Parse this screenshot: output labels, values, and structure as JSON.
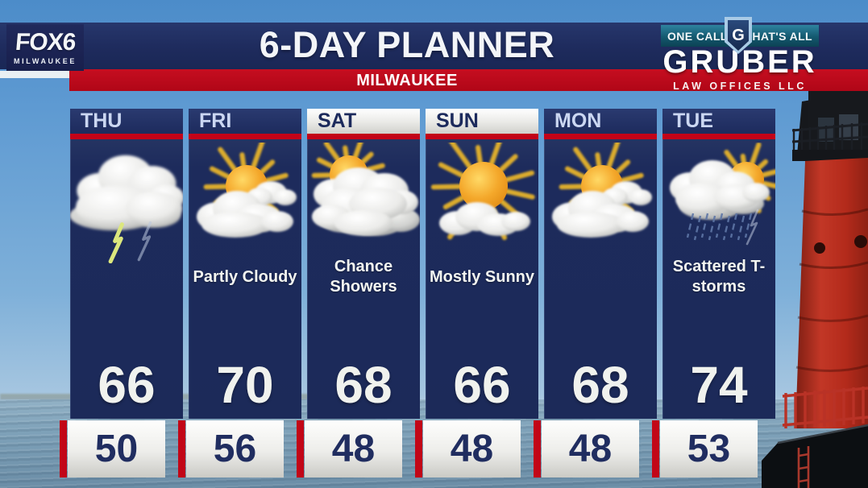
{
  "chart_data": {
    "type": "table",
    "title": "6-DAY PLANNER",
    "location": "MILWAUKEE",
    "days": [
      "THU",
      "FRI",
      "SAT",
      "SUN",
      "MON",
      "TUE"
    ],
    "conditions": [
      "",
      "Partly Cloudy",
      "Chance Showers",
      "Mostly Sunny",
      "",
      "Scattered T-storms"
    ],
    "highs": [
      66,
      70,
      68,
      66,
      68,
      74
    ],
    "lows": [
      50,
      56,
      48,
      48,
      48,
      53
    ]
  },
  "station": {
    "logo_text": "FOX6",
    "logo_subtext": "MILWAUKEE"
  },
  "header": {
    "title": "6-DAY PLANNER",
    "location": "MILWAUKEE"
  },
  "sponsor": {
    "tag_left": "ONE CALL",
    "tag_right": "THAT'S ALL",
    "monogram": "G",
    "name": "GRUBER",
    "subtext": "LAW OFFICES LLC"
  },
  "forecast": {
    "columns": [
      {
        "day": "THU",
        "icon": "thunderstorm",
        "condition": "",
        "high": "66",
        "low": "50"
      },
      {
        "day": "FRI",
        "icon": "partly-cloudy",
        "condition": "Partly Cloudy",
        "high": "70",
        "low": "56"
      },
      {
        "day": "SAT",
        "icon": "chance-showers",
        "condition": "Chance Showers",
        "high": "68",
        "low": "48"
      },
      {
        "day": "SUN",
        "icon": "mostly-sunny",
        "condition": "Mostly Sunny",
        "high": "66",
        "low": "48"
      },
      {
        "day": "MON",
        "icon": "partly-cloudy",
        "condition": "",
        "high": "68",
        "low": "48"
      },
      {
        "day": "TUE",
        "icon": "scattered-tstorms",
        "condition": "Scattered T-storms",
        "high": "74",
        "low": "53"
      }
    ]
  },
  "colors": {
    "banner_navy": "#1E2B5D",
    "brand_red": "#BB0A1C",
    "column_navy": "#1C2A59",
    "day_label_text": "#CBD7F2",
    "high_temp_text": "#F0F2EE",
    "low_temp_text": "#202D60",
    "sponsor_teal": "#14596F"
  }
}
